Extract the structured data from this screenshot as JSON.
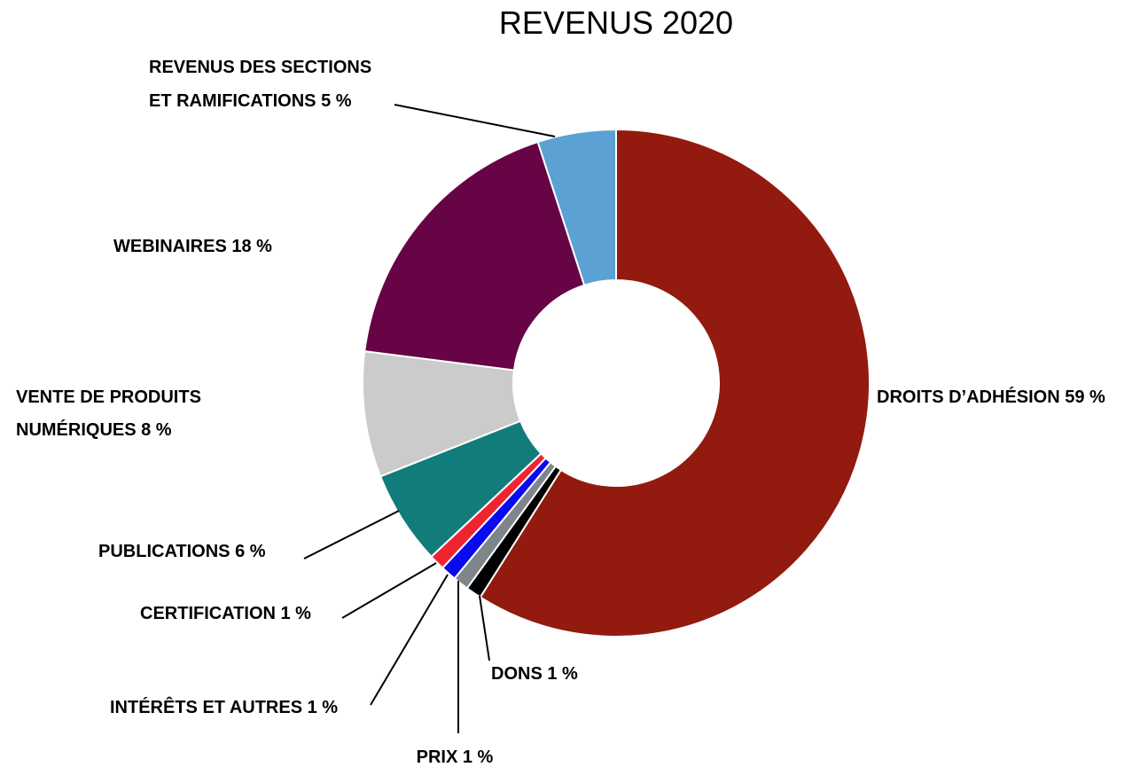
{
  "chart_data": {
    "type": "pie",
    "donut": true,
    "title": "REVENUS 2020",
    "slices": [
      {
        "label": "DROITS D’ADHÉSION 59 %",
        "value": 59,
        "color": "#921A0F"
      },
      {
        "label": "DONS 1 %",
        "value": 1,
        "color": "#000000"
      },
      {
        "label": "PRIX 1 %",
        "value": 1,
        "color": "#7E868B"
      },
      {
        "label": "INTÉRÊTS ET AUTRES 1 %",
        "value": 1,
        "color": "#0A0AF0"
      },
      {
        "label": "CERTIFICATION 1 %",
        "value": 1,
        "color": "#EE2530"
      },
      {
        "label": "PUBLICATIONS 6 %",
        "value": 6,
        "color": "#127C7A"
      },
      {
        "label": "VENTE DE PRODUITS NUMÉRIQUES 8 %",
        "value": 8,
        "color": "#CBCBCB"
      },
      {
        "label": "WEBINAIRES 18 %",
        "value": 18,
        "color": "#660445"
      },
      {
        "label": "REVENUS DES SECTIONS ET RAMIFICATIONS 5 %",
        "value": 5,
        "color": "#5BA1D4"
      }
    ]
  },
  "labels": {
    "droits": "DROITS D’ADHÉSION 59 %",
    "dons": "DONS 1 %",
    "prix": "PRIX 1 %",
    "interets": "INTÉRÊTS ET AUTRES 1 %",
    "certification": "CERTIFICATION 1 %",
    "publications": "PUBLICATIONS 6 %",
    "vente_line1": "VENTE DE PRODUITS",
    "vente_line2": "NUMÉRIQUES  8 %",
    "webinaires": "WEBINAIRES 18 %",
    "revenus_line1": "REVENUS DES SECTIONS",
    "revenus_line2": "ET RAMIFICATIONS 5 %"
  }
}
